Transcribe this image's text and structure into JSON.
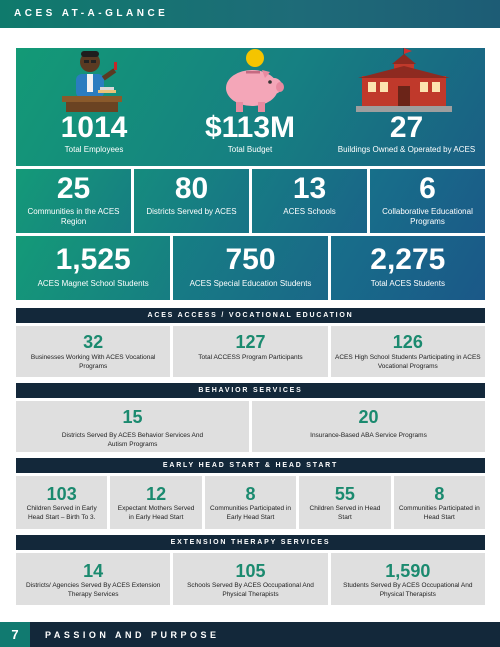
{
  "header": {
    "title": "ACES AT-A-GLANCE"
  },
  "hero": [
    {
      "value": "1014",
      "label": "Total Employees",
      "icon": "teacher-icon"
    },
    {
      "value": "$113M",
      "label": "Total Budget",
      "icon": "piggy-bank-icon"
    },
    {
      "value": "27",
      "label": "Buildings Owned & Operated by ACES",
      "icon": "school-building-icon"
    }
  ],
  "row2": [
    {
      "value": "25",
      "label": "Communities in the ACES Region"
    },
    {
      "value": "80",
      "label": "Districts Served by ACES"
    },
    {
      "value": "13",
      "label": "ACES Schools"
    },
    {
      "value": "6",
      "label": "Collaborative Educational Programs"
    }
  ],
  "row3": [
    {
      "value": "1,525",
      "label": "ACES Magnet School Students"
    },
    {
      "value": "750",
      "label": "ACES Special Education Students"
    },
    {
      "value": "2,275",
      "label": "Total ACES Students"
    }
  ],
  "sections": [
    {
      "title": "ACES ACCESS / VOCATIONAL EDUCATION",
      "items": [
        {
          "value": "32",
          "label": "Businesses Working With ACES Vocational Programs"
        },
        {
          "value": "127",
          "label": "Total ACCESS Program Participants"
        },
        {
          "value": "126",
          "label": "ACES High School Students Participating in ACES Vocational Programs"
        }
      ]
    },
    {
      "title": "BEHAVIOR SERVICES",
      "items": [
        {
          "value": "15",
          "label": "Districts Served By ACES Behavior Services And Autism Programs"
        },
        {
          "value": "20",
          "label": "Insurance-Based ABA Service Programs"
        }
      ]
    },
    {
      "title": "EARLY HEAD START & HEAD START",
      "items": [
        {
          "value": "103",
          "label": "Children Served in Early Head Start – Birth To 3."
        },
        {
          "value": "12",
          "label": "Expectant Mothers Served in Early Head Start"
        },
        {
          "value": "8",
          "label": "Communities Participated in Early Head Start"
        },
        {
          "value": "55",
          "label": "Children Served in Head Start"
        },
        {
          "value": "8",
          "label": "Communities Participated in Head Start"
        }
      ]
    },
    {
      "title": "EXTENSION THERAPY SERVICES",
      "items": [
        {
          "value": "14",
          "label": "Districts/ Agencies Served By ACES Extension Therapy Services"
        },
        {
          "value": "105",
          "label": "Schools Served By ACES Occupational And Physical Therapists"
        },
        {
          "value": "1,590",
          "label": "Students Served By ACES Occupational And Physical Therapists"
        }
      ]
    }
  ],
  "footer": {
    "page": "7",
    "text": "PASSION AND PURPOSE"
  },
  "colors": {
    "accent_green": "#1b8a6f",
    "navy": "#13283a",
    "panel_gray": "#dfdfdf"
  }
}
